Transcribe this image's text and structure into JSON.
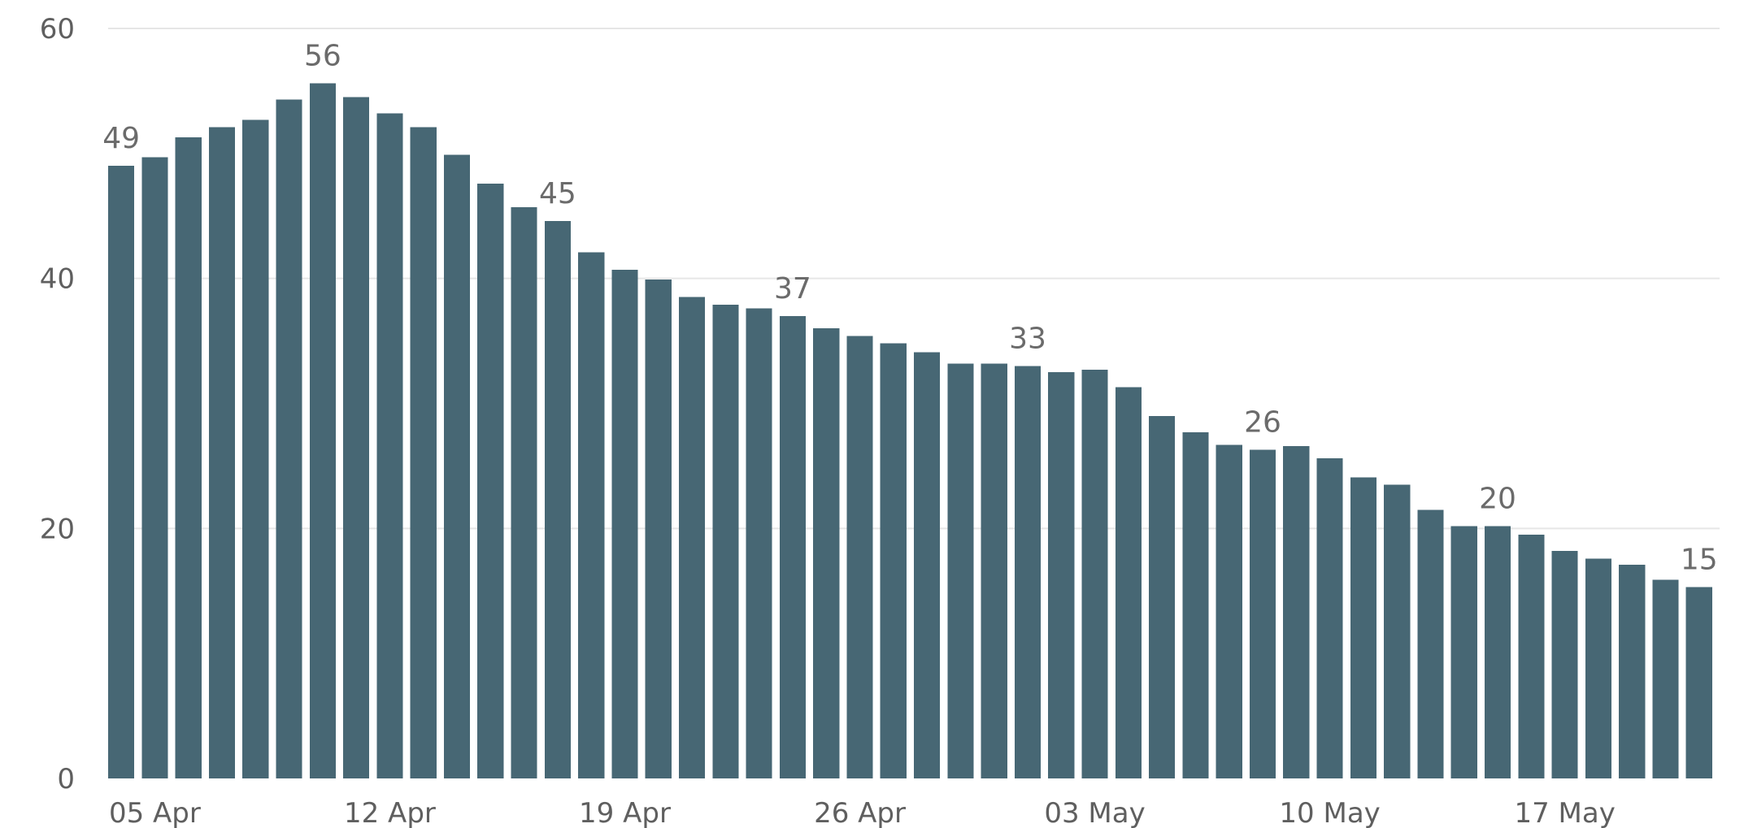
{
  "chart_data": {
    "type": "bar",
    "title": "",
    "xlabel": "",
    "ylabel": "",
    "ylim": [
      0,
      60
    ],
    "y_ticks": [
      0,
      20,
      40,
      60
    ],
    "grid": true,
    "legend": "none",
    "bar_color": "#476774",
    "categories": [
      "04 Apr",
      "05 Apr",
      "06 Apr",
      "07 Apr",
      "08 Apr",
      "09 Apr",
      "10 Apr",
      "11 Apr",
      "12 Apr",
      "13 Apr",
      "14 Apr",
      "15 Apr",
      "16 Apr",
      "17 Apr",
      "18 Apr",
      "19 Apr",
      "20 Apr",
      "21 Apr",
      "22 Apr",
      "23 Apr",
      "24 Apr",
      "25 Apr",
      "26 Apr",
      "27 Apr",
      "28 Apr",
      "29 Apr",
      "30 Apr",
      "01 May",
      "02 May",
      "03 May",
      "04 May",
      "05 May",
      "06 May",
      "07 May",
      "08 May",
      "09 May",
      "10 May",
      "11 May",
      "12 May",
      "13 May",
      "14 May",
      "15 May",
      "16 May",
      "17 May",
      "18 May",
      "19 May",
      "20 May",
      "21 May"
    ],
    "values": [
      49,
      49.7,
      51.3,
      52.1,
      52.7,
      54.3,
      55.6,
      54.5,
      53.2,
      52.1,
      49.9,
      47.6,
      45.7,
      44.6,
      42.1,
      40.7,
      39.9,
      38.5,
      37.9,
      37.6,
      37,
      36.0,
      35.4,
      34.8,
      34.1,
      33.2,
      33.2,
      33.0,
      32.5,
      32.7,
      31.3,
      29.0,
      27.7,
      26.7,
      26.3,
      26.6,
      25.6,
      24.1,
      23.5,
      21.5,
      20.2,
      20.2,
      19.5,
      18.2,
      17.6,
      17.1,
      15.9,
      15.3
    ],
    "x_tick_labels": [
      {
        "index": 1,
        "label": "05 Apr"
      },
      {
        "index": 8,
        "label": "12 Apr"
      },
      {
        "index": 15,
        "label": "19 Apr"
      },
      {
        "index": 22,
        "label": "26 Apr"
      },
      {
        "index": 29,
        "label": "03 May"
      },
      {
        "index": 36,
        "label": "10 May"
      },
      {
        "index": 43,
        "label": "17 May"
      }
    ],
    "data_labels": [
      {
        "index": 0,
        "text": "49"
      },
      {
        "index": 6,
        "text": "56"
      },
      {
        "index": 13,
        "text": "45"
      },
      {
        "index": 20,
        "text": "37"
      },
      {
        "index": 27,
        "text": "33"
      },
      {
        "index": 34,
        "text": "26"
      },
      {
        "index": 41,
        "text": "20"
      },
      {
        "index": 47,
        "text": "15"
      }
    ]
  }
}
